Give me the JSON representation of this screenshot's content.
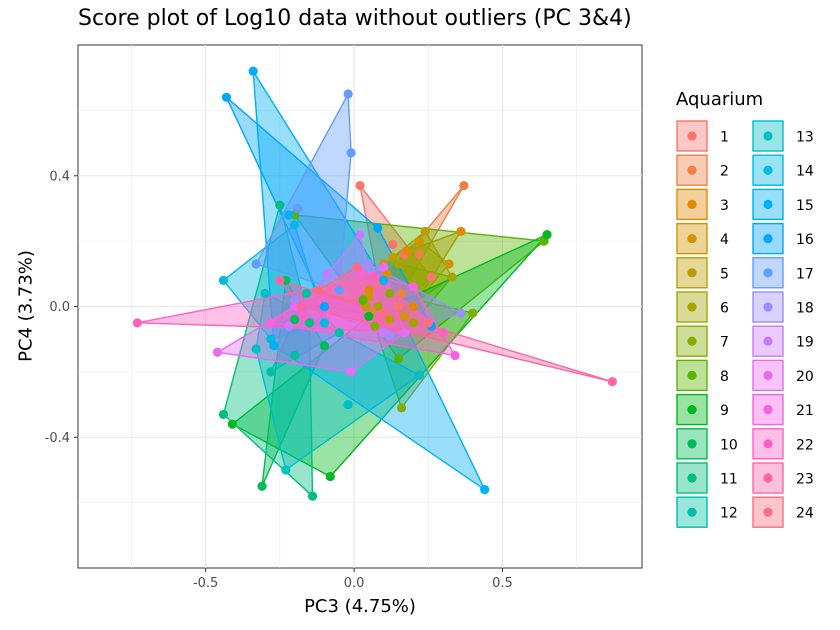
{
  "chart_data": {
    "type": "scatter",
    "title": "Score plot of Log10 data without outliers (PC 3&4)",
    "xlabel": "PC3 (4.75%)",
    "ylabel": "PC4 (3.73%)",
    "xlim": [
      -0.93,
      0.97
    ],
    "ylim": [
      -0.8,
      0.8
    ],
    "xticks": [
      -0.5,
      0.0,
      0.5
    ],
    "xtick_labels": [
      "-0.5",
      "0.0",
      "0.5"
    ],
    "yticks": [
      -0.4,
      0.0,
      0.4
    ],
    "ytick_labels": [
      "-0.4",
      "0.0",
      "0.4"
    ],
    "grid": true,
    "legend": {
      "title": "Aquarium",
      "placement": "right",
      "columns": 2
    },
    "series": [
      {
        "name": "1",
        "color": "#F8766D",
        "points": [
          [
            0.02,
            0.37
          ],
          [
            0.13,
            0.19
          ],
          [
            0.17,
            0.16
          ],
          [
            0.26,
            0.09
          ],
          [
            0.15,
            0.0
          ],
          [
            0.08,
            0.08
          ]
        ]
      },
      {
        "name": "2",
        "color": "#EE8043",
        "points": [
          [
            0.37,
            0.37
          ],
          [
            0.22,
            0.16
          ],
          [
            0.1,
            0.08
          ],
          [
            0.06,
            -0.02
          ],
          [
            0.16,
            0.04
          ]
        ]
      },
      {
        "name": "3",
        "color": "#E18A00",
        "points": [
          [
            0.36,
            0.23
          ],
          [
            0.18,
            0.17
          ],
          [
            0.11,
            0.1
          ],
          [
            0.05,
            0.05
          ],
          [
            0.2,
            0.0
          ]
        ]
      },
      {
        "name": "4",
        "color": "#CF9400",
        "points": [
          [
            0.32,
            0.13
          ],
          [
            0.22,
            0.2
          ],
          [
            0.1,
            0.13
          ],
          [
            0.05,
            0.03
          ],
          [
            0.17,
            -0.03
          ]
        ]
      },
      {
        "name": "5",
        "color": "#BB9D00",
        "points": [
          [
            0.24,
            0.23
          ],
          [
            0.33,
            0.09
          ],
          [
            0.13,
            0.15
          ],
          [
            0.04,
            0.0
          ],
          [
            0.12,
            -0.04
          ]
        ]
      },
      {
        "name": "6",
        "color": "#A3A500",
        "points": [
          [
            0.33,
            0.09
          ],
          [
            0.2,
            0.06
          ],
          [
            0.15,
            0.13
          ],
          [
            0.08,
            0.0
          ],
          [
            0.2,
            -0.05
          ]
        ]
      },
      {
        "name": "7",
        "color": "#85AD00",
        "points": [
          [
            0.4,
            -0.02
          ],
          [
            0.16,
            -0.31
          ],
          [
            0.12,
            0.04
          ],
          [
            0.07,
            -0.06
          ]
        ]
      },
      {
        "name": "8",
        "color": "#5BB300",
        "points": [
          [
            0.64,
            0.2
          ],
          [
            0.15,
            -0.16
          ],
          [
            -0.2,
            0.28
          ],
          [
            0.03,
            0.02
          ]
        ]
      },
      {
        "name": "9",
        "color": "#00B81F",
        "points": [
          [
            0.65,
            0.22
          ],
          [
            -0.08,
            -0.52
          ],
          [
            -0.41,
            -0.36
          ],
          [
            0.05,
            -0.03
          ]
        ]
      },
      {
        "name": "10",
        "color": "#00BC56",
        "points": [
          [
            -0.31,
            -0.55
          ],
          [
            -0.23,
            0.08
          ],
          [
            -0.2,
            -0.04
          ],
          [
            -0.1,
            -0.12
          ]
        ]
      },
      {
        "name": "11",
        "color": "#00BE7D",
        "points": [
          [
            -0.14,
            -0.58
          ],
          [
            -0.44,
            -0.33
          ],
          [
            -0.25,
            0.31
          ],
          [
            -0.15,
            -0.05
          ]
        ]
      },
      {
        "name": "12",
        "color": "#00C0A3",
        "points": [
          [
            -0.28,
            -0.2
          ],
          [
            -0.16,
            0.04
          ],
          [
            -0.05,
            -0.08
          ],
          [
            -0.2,
            -0.15
          ]
        ]
      },
      {
        "name": "13",
        "color": "#00BFC4",
        "points": [
          [
            -0.23,
            -0.5
          ],
          [
            0.22,
            -0.21
          ],
          [
            -0.02,
            -0.3
          ],
          [
            -0.33,
            -0.13
          ],
          [
            -0.3,
            0.04
          ]
        ]
      },
      {
        "name": "14",
        "color": "#00BAE0",
        "points": [
          [
            -0.44,
            0.08
          ],
          [
            -0.2,
            0.25
          ],
          [
            -0.1,
            -0.05
          ],
          [
            -0.28,
            -0.1
          ]
        ]
      },
      {
        "name": "15",
        "color": "#00B0F6",
        "points": [
          [
            -0.34,
            0.72
          ],
          [
            -0.22,
            0.28
          ],
          [
            0.44,
            -0.56
          ],
          [
            0.1,
            0.08
          ],
          [
            -0.27,
            -0.12
          ]
        ]
      },
      {
        "name": "16",
        "color": "#00A5FF",
        "points": [
          [
            -0.43,
            0.64
          ],
          [
            0.08,
            0.24
          ],
          [
            0.26,
            -0.06
          ],
          [
            -0.1,
            0.0
          ]
        ]
      },
      {
        "name": "17",
        "color": "#619CFF",
        "points": [
          [
            -0.02,
            0.65
          ],
          [
            -0.01,
            0.47
          ],
          [
            -0.33,
            0.13
          ],
          [
            -0.05,
            0.05
          ],
          [
            -0.19,
            0.3
          ]
        ]
      },
      {
        "name": "18",
        "color": "#9F8CFF",
        "points": [
          [
            0.36,
            -0.02
          ],
          [
            0.05,
            0.13
          ],
          [
            -0.2,
            0.02
          ],
          [
            0.12,
            -0.09
          ]
        ]
      },
      {
        "name": "19",
        "color": "#C77CFF",
        "points": [
          [
            0.02,
            0.22
          ],
          [
            -0.09,
            0.1
          ],
          [
            -0.22,
            -0.06
          ],
          [
            0.1,
            -0.08
          ]
        ]
      },
      {
        "name": "20",
        "color": "#E76BF3",
        "points": [
          [
            -0.46,
            -0.14
          ],
          [
            -0.01,
            -0.2
          ],
          [
            0.17,
            -0.08
          ],
          [
            0.1,
            0.12
          ],
          [
            -0.2,
            0.0
          ]
        ]
      },
      {
        "name": "21",
        "color": "#F862DE",
        "points": [
          [
            0.34,
            -0.15
          ],
          [
            -0.28,
            -0.05
          ],
          [
            0.02,
            0.11
          ],
          [
            0.2,
            0.06
          ]
        ]
      },
      {
        "name": "22",
        "color": "#FF61C3",
        "points": [
          [
            -0.73,
            -0.05
          ],
          [
            0.3,
            -0.08
          ],
          [
            0.07,
            0.09
          ],
          [
            -0.17,
            -0.03
          ]
        ]
      },
      {
        "name": "23",
        "color": "#FF64A4",
        "points": [
          [
            0.87,
            -0.23
          ],
          [
            -0.25,
            0.08
          ],
          [
            -0.18,
            0.0
          ],
          [
            0.09,
            -0.04
          ]
        ]
      },
      {
        "name": "24",
        "color": "#FC6D84",
        "points": [
          [
            0.25,
            -0.05
          ],
          [
            -0.12,
            0.05
          ],
          [
            0.01,
            0.12
          ],
          [
            0.1,
            -0.02
          ]
        ]
      }
    ]
  }
}
